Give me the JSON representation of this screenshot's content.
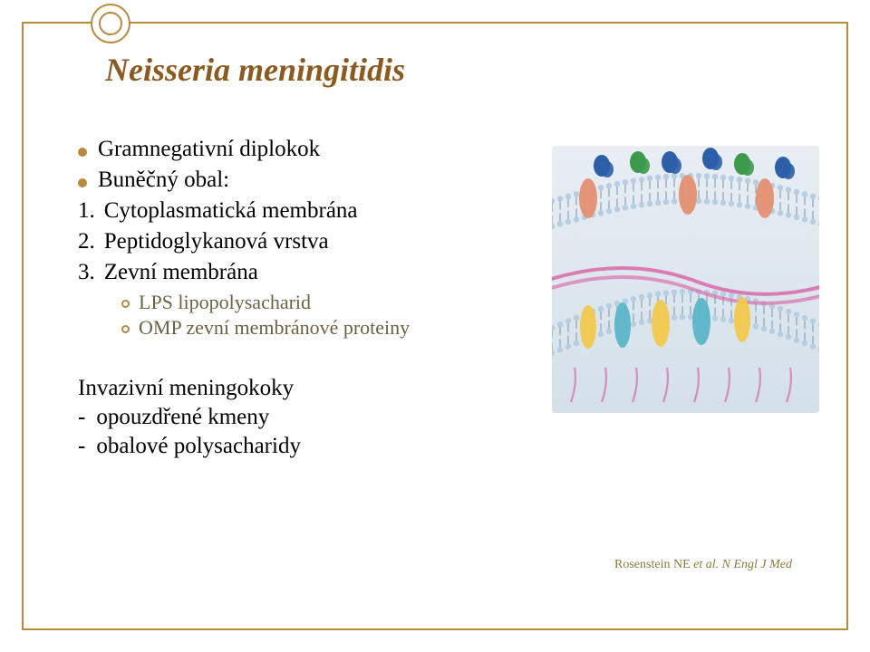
{
  "colors": {
    "accent": "#b88a40",
    "title": "#8a5a1e",
    "sub_text": "#6b6246",
    "citation": "#8a7a3c",
    "border": "#b88a40"
  },
  "title": "Neisseria meningitidis",
  "bullets": [
    "Gramnegativní diplokok",
    "Buněčný obal:"
  ],
  "numbered": [
    "Cytoplasmatická membrána",
    "Peptidoglykanová vrstva",
    "Zevní membrána"
  ],
  "sub": [
    "LPS lipopolysacharid",
    "OMP zevní membránové proteiny"
  ],
  "subheading": "Invazivní meningokoky",
  "dashes": [
    "opouzdřené kmeny",
    "obalové polysacharidy"
  ],
  "citation_author": "Rosenstein NE ",
  "citation_rest": "et al. N Engl J Med",
  "membrane_svg": {
    "bg_top": "#e8eef4",
    "bg_bottom": "#d4e0ea",
    "lipid_head": "#b7cde0",
    "lipid_tail": "#8fa8bc",
    "yellow": "#f2c94c",
    "pink": "#d968a8",
    "cyan": "#5ab5c8",
    "blue": "#2c5fa8",
    "salmon": "#e59070",
    "green": "#3c9a4a"
  }
}
